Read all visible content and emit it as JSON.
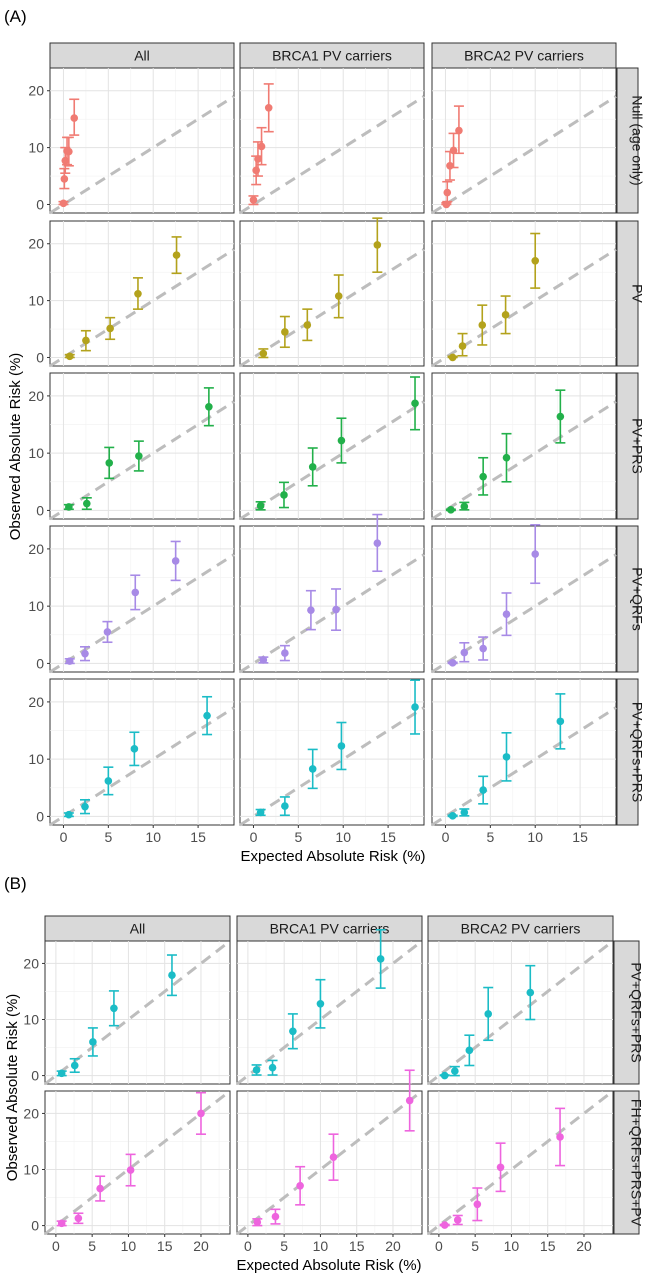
{
  "figure": {
    "panels": [
      {
        "tag": "(A)",
        "xlabel": "Expected Absolute Risk (%)",
        "ylabel": "Observed Absolute Risk (%)",
        "columns": [
          "All",
          "BRCA1 PV carriers",
          "BRCA2 PV carriers"
        ],
        "rows": [
          "Null (age only)",
          "PV",
          "PV+PRS",
          "PV+QRFs",
          "PV+QRFs+PRS"
        ],
        "xticks": [
          0,
          5,
          10,
          15
        ],
        "yticks": [
          0,
          10,
          20
        ]
      },
      {
        "tag": "(B)",
        "xlabel": "Expected Absolute Risk (%)",
        "ylabel": "Observed Absolute Risk (%)",
        "columns": [
          "All",
          "BRCA1 PV carriers",
          "BRCA2 PV carriers"
        ],
        "rows": [
          "PV+QRFs+PRS",
          "FH+QRFs+PRS+PV"
        ],
        "xticks": [
          0,
          5,
          10,
          15,
          20
        ],
        "yticks": [
          0,
          10,
          20
        ]
      }
    ]
  },
  "chart_data": [
    {
      "type": "scatter",
      "xlabel": "Expected Absolute Risk (%)",
      "ylabel": "Observed Absolute Risk (%)",
      "xlim": [
        -1.5,
        19
      ],
      "ylim": [
        -1.5,
        24
      ],
      "reference_line": "y = x (dashed grey)",
      "columns": [
        "All",
        "BRCA1 PV carriers",
        "BRCA2 PV carriers"
      ],
      "rows": [
        "Null (age only)",
        "PV",
        "PV+PRS",
        "PV+QRFs",
        "PV+QRFs+PRS"
      ],
      "colors": [
        "#f07b73",
        "#b3a21c",
        "#22b04a",
        "#a78ae6",
        "#1bbcc6"
      ],
      "cells": [
        [
          {
            "x": [
              0,
              0.1,
              0.2,
              0.4,
              0.6,
              1.2
            ],
            "y": [
              0.2,
              4.5,
              7.7,
              9.4,
              9.3,
              15.2
            ],
            "lo": [
              0,
              2.8,
              5.5,
              7,
              6.8,
              12.2
            ],
            "hi": [
              0.5,
              6.3,
              10,
              11.8,
              11.8,
              18.5
            ]
          },
          {
            "x": [
              0,
              0.3,
              0.5,
              0.9,
              1.7
            ],
            "y": [
              0.8,
              6,
              8,
              10.2,
              17
            ],
            "lo": [
              0,
              3.5,
              5,
              7,
              12.8
            ],
            "hi": [
              1.5,
              8.5,
              11,
              13.5,
              21.2
            ]
          },
          {
            "x": [
              0.1,
              0.2,
              0.5,
              0.9,
              1.5
            ],
            "y": [
              0,
              2.1,
              6.8,
              9.5,
              13
            ],
            "lo": [
              0,
              0.5,
              4.3,
              6.5,
              9
            ],
            "hi": [
              0.3,
              4,
              9.3,
              12.5,
              17.3
            ]
          }
        ],
        [
          {
            "x": [
              0.7,
              2.5,
              5.2,
              8.3,
              12.6
            ],
            "y": [
              0.2,
              3,
              5.1,
              11.2,
              18
            ],
            "lo": [
              0,
              1.2,
              3.2,
              8.5,
              14.8
            ],
            "hi": [
              0.5,
              4.7,
              7,
              14,
              21.2
            ]
          },
          {
            "x": [
              1.1,
              3.5,
              6,
              9.5,
              13.8
            ],
            "y": [
              0.7,
              4.5,
              5.7,
              10.8,
              19.8
            ],
            "lo": [
              0,
              1.8,
              3,
              7,
              15
            ],
            "hi": [
              1.5,
              7.2,
              8.5,
              14.5,
              24.5
            ]
          },
          {
            "x": [
              0.8,
              1.9,
              4.1,
              6.7,
              10
            ],
            "y": [
              0,
              2,
              5.7,
              7.5,
              17
            ],
            "lo": [
              0,
              0.3,
              2.2,
              4.2,
              12.2
            ],
            "hi": [
              0.2,
              4.2,
              9.2,
              10.8,
              21.8
            ]
          }
        ],
        [
          {
            "x": [
              0.6,
              2.6,
              5.1,
              8.4,
              16.2
            ],
            "y": [
              0.6,
              1.2,
              8.3,
              9.5,
              18.1
            ],
            "lo": [
              0.2,
              0.2,
              5.6,
              6.9,
              14.8
            ],
            "hi": [
              1,
              2.2,
              11,
              12.1,
              21.4
            ]
          },
          {
            "x": [
              0.8,
              3.4,
              6.6,
              9.8,
              18
            ],
            "y": [
              0.8,
              2.7,
              7.6,
              12.2,
              18.7
            ],
            "lo": [
              0.1,
              0.5,
              4.3,
              8.3,
              14.1
            ],
            "hi": [
              1.5,
              4.9,
              10.9,
              16.1,
              23.3
            ]
          },
          {
            "x": [
              0.6,
              2.1,
              4.2,
              6.8,
              12.8
            ],
            "y": [
              0.1,
              0.7,
              5.9,
              9.2,
              16.4
            ],
            "lo": [
              0,
              0.1,
              2.7,
              5,
              11.8
            ],
            "hi": [
              0.2,
              1.4,
              9.2,
              13.4,
              21
            ]
          }
        ],
        [
          {
            "x": [
              0.7,
              2.4,
              4.9,
              8,
              12.5
            ],
            "y": [
              0.4,
              1.7,
              5.5,
              12.4,
              17.9
            ],
            "lo": [
              0,
              0.5,
              3.7,
              9.4,
              14.5
            ],
            "hi": [
              0.8,
              2.9,
              7.3,
              15.4,
              21.3
            ]
          },
          {
            "x": [
              1.1,
              3.5,
              6.4,
              9.2,
              13.8
            ],
            "y": [
              0.6,
              1.8,
              9.3,
              9.4,
              21
            ],
            "lo": [
              0.1,
              0.5,
              5.9,
              5.8,
              16.1
            ],
            "hi": [
              1.1,
              3.1,
              12.7,
              13,
              26
            ]
          },
          {
            "x": [
              0.8,
              2.1,
              4.2,
              6.8,
              10
            ],
            "y": [
              0.1,
              1.9,
              2.6,
              8.6,
              19.1
            ],
            "lo": [
              0,
              0.3,
              0.6,
              4.9,
              14
            ],
            "hi": [
              0.2,
              3.6,
              4.6,
              12.3,
              24.2
            ]
          }
        ],
        [
          {
            "x": [
              0.6,
              2.4,
              5,
              7.9,
              16
            ],
            "y": [
              0.3,
              1.7,
              6.2,
              11.8,
              17.6
            ],
            "lo": [
              0,
              0.5,
              3.8,
              8.9,
              14.3
            ],
            "hi": [
              0.6,
              2.9,
              8.6,
              14.7,
              20.9
            ]
          },
          {
            "x": [
              0.8,
              3.5,
              6.6,
              9.8,
              18
            ],
            "y": [
              0.7,
              1.8,
              8.3,
              12.3,
              19.1
            ],
            "lo": [
              0.2,
              0.2,
              4.9,
              8.2,
              14.4
            ],
            "hi": [
              1.2,
              3.4,
              11.7,
              16.4,
              23.8
            ]
          },
          {
            "x": [
              0.8,
              2.1,
              4.2,
              6.8,
              12.8
            ],
            "y": [
              0.1,
              0.7,
              4.6,
              10.4,
              16.6
            ],
            "lo": [
              0,
              0.1,
              2.2,
              6.2,
              11.8
            ],
            "hi": [
              0.2,
              1.3,
              7,
              14.6,
              21.4
            ]
          }
        ]
      ]
    },
    {
      "type": "scatter",
      "xlabel": "Expected Absolute Risk (%)",
      "ylabel": "Observed Absolute Risk (%)",
      "xlim": [
        -1.5,
        24
      ],
      "ylim": [
        -1.5,
        24
      ],
      "reference_line": "y = x (dashed grey)",
      "columns": [
        "All",
        "BRCA1 PV carriers",
        "BRCA2 PV carriers"
      ],
      "rows": [
        "PV+QRFs+PRS",
        "FH+QRFs+PRS+PV"
      ],
      "colors": [
        "#1bbcc6",
        "#ee64de"
      ],
      "cells": [
        [
          {
            "x": [
              0.8,
              2.6,
              5.1,
              8,
              16
            ],
            "y": [
              0.4,
              1.8,
              6,
              12,
              17.9
            ],
            "lo": [
              0,
              0.6,
              3.5,
              8.9,
              14.3
            ],
            "hi": [
              0.8,
              3,
              8.5,
              15.1,
              21.5
            ]
          },
          {
            "x": [
              1.2,
              3.4,
              6.2,
              10,
              18.3
            ],
            "y": [
              1,
              1.4,
              7.9,
              12.8,
              20.8
            ],
            "lo": [
              0.1,
              0.1,
              4.8,
              8.5,
              15.6
            ],
            "hi": [
              1.9,
              2.7,
              11,
              17.1,
              26
            ]
          },
          {
            "x": [
              0.8,
              2.2,
              4.2,
              6.8,
              12.6
            ],
            "y": [
              0,
              0.8,
              4.5,
              11,
              14.8
            ],
            "lo": [
              0,
              0,
              1.8,
              6.3,
              10
            ],
            "hi": [
              0.1,
              1.6,
              7.2,
              15.7,
              19.6
            ]
          }
        ],
        [
          {
            "x": [
              0.8,
              3.1,
              6.1,
              10.3,
              20
            ],
            "y": [
              0.4,
              1.3,
              6.6,
              9.9,
              20
            ],
            "lo": [
              0,
              0.4,
              4.4,
              7.1,
              16.3
            ],
            "hi": [
              0.8,
              2.2,
              8.8,
              12.7,
              23.7
            ]
          },
          {
            "x": [
              1.3,
              3.8,
              7.2,
              11.8,
              22.3
            ],
            "y": [
              0.6,
              1.6,
              7.1,
              12.2,
              22.3
            ],
            "lo": [
              0,
              0.3,
              3.7,
              8.1,
              16.9
            ],
            "hi": [
              1.2,
              2.9,
              10.5,
              16.3,
              27.7
            ]
          },
          {
            "x": [
              0.8,
              2.6,
              5.3,
              8.5,
              16.7
            ],
            "y": [
              0.1,
              1,
              3.8,
              10.4,
              15.8
            ],
            "lo": [
              0,
              0.2,
              0.9,
              6.1,
              10.7
            ],
            "hi": [
              0.2,
              1.8,
              6.7,
              14.7,
              20.9
            ]
          }
        ]
      ]
    }
  ]
}
